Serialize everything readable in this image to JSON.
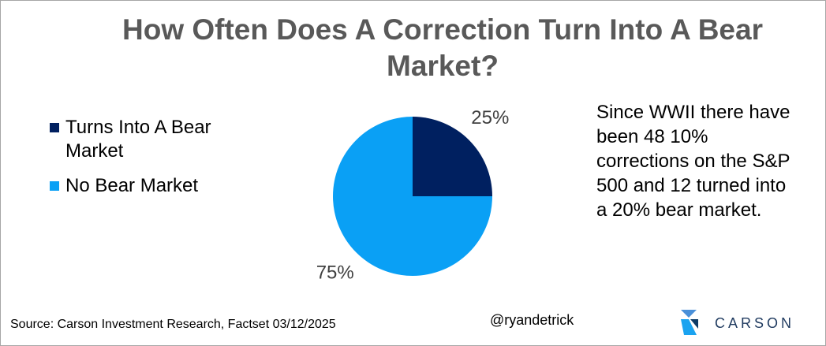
{
  "chart_data": {
    "type": "pie",
    "title": "How Often Does A Correction Turn Into A Bear Market?",
    "categories": [
      "Turns Into A Bear Market",
      "No Bear Market"
    ],
    "values": [
      25,
      75
    ],
    "value_labels": [
      "25%",
      "75%"
    ],
    "colors": [
      "#002060",
      "#0aa0f5"
    ],
    "annotation": "Since WWII there have been 48 10% corrections on the S&P 500 and 12 turned into a 20% bear market.",
    "source": "Source: Carson Investment Research, Factset 03/12/2025",
    "handle": "@ryandetrick",
    "logo": "CARSON"
  }
}
